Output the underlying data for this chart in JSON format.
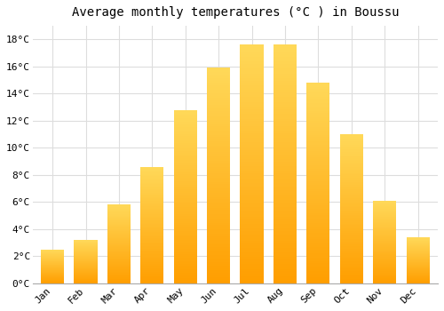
{
  "title": "Average monthly temperatures (°C ) in Boussu",
  "months": [
    "Jan",
    "Feb",
    "Mar",
    "Apr",
    "May",
    "Jun",
    "Jul",
    "Aug",
    "Sep",
    "Oct",
    "Nov",
    "Dec"
  ],
  "values": [
    2.5,
    3.2,
    5.8,
    8.6,
    12.8,
    15.9,
    17.6,
    17.6,
    14.8,
    11.0,
    6.1,
    3.4
  ],
  "bar_color": "#FFA500",
  "bar_color_light": "#FFD060",
  "ylim": [
    0,
    19
  ],
  "yticks": [
    0,
    2,
    4,
    6,
    8,
    10,
    12,
    14,
    16,
    18
  ],
  "ytick_labels": [
    "0°C",
    "2°C",
    "4°C",
    "6°C",
    "8°C",
    "10°C",
    "12°C",
    "14°C",
    "16°C",
    "18°C"
  ],
  "background_color": "#FFFFFF",
  "grid_color": "#DDDDDD",
  "title_fontsize": 10,
  "tick_fontsize": 8,
  "font_family": "monospace"
}
